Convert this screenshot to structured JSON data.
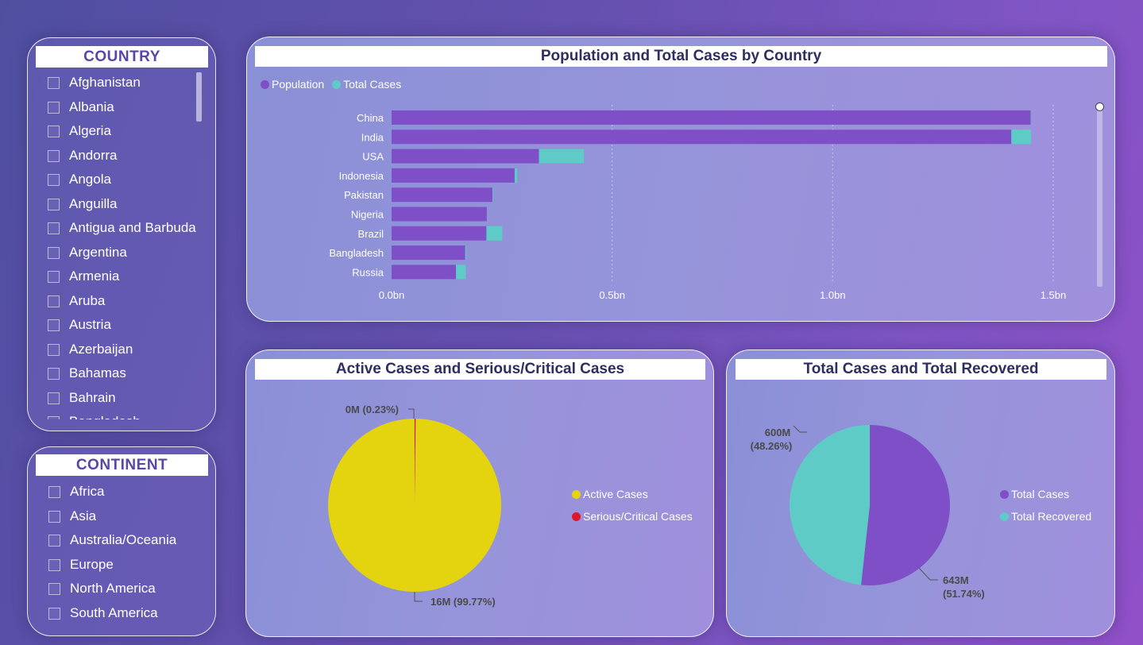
{
  "country_slicer": {
    "title": "COUNTRY",
    "items": [
      "Afghanistan",
      "Albania",
      "Algeria",
      "Andorra",
      "Angola",
      "Anguilla",
      "Antigua and Barbuda",
      "Argentina",
      "Armenia",
      "Aruba",
      "Austria",
      "Azerbaijan",
      "Bahamas",
      "Bahrain",
      "Bangladesh"
    ]
  },
  "continent_slicer": {
    "title": "CONTINENT",
    "items": [
      "Africa",
      "Asia",
      "Australia/Oceania",
      "Europe",
      "North America",
      "South America"
    ]
  },
  "bar_visual": {
    "title": "Population and Total Cases by Country",
    "legend": [
      {
        "label": "Population",
        "color": "#7e4fc7"
      },
      {
        "label": "Total Cases",
        "color": "#5fcbc6"
      }
    ]
  },
  "active_visual": {
    "title": "Active Cases and Serious/Critical Cases",
    "legend": [
      {
        "label": "Active Cases",
        "color": "#e4d30f"
      },
      {
        "label": "Serious/Critical Cases",
        "color": "#e0172b"
      }
    ],
    "labels": {
      "small": "0M (0.23%)",
      "large": "16M (99.77%)"
    }
  },
  "recovered_visual": {
    "title": "Total Cases and Total Recovered",
    "legend": [
      {
        "label": "Total Cases",
        "color": "#7e4fc7"
      },
      {
        "label": "Total Recovered",
        "color": "#5fcbc6"
      }
    ],
    "labels": {
      "recovered_value": "600M",
      "recovered_pct": "(48.26%)",
      "cases_value": "643M",
      "cases_pct": "(51.74%)"
    }
  },
  "chart_data": [
    {
      "type": "bar",
      "orientation": "horizontal",
      "stacked": true,
      "title": "Population and Total Cases by Country",
      "categories": [
        "China",
        "India",
        "USA",
        "Indonesia",
        "Pakistan",
        "Nigeria",
        "Brazil",
        "Bangladesh",
        "Russia"
      ],
      "series": [
        {
          "name": "Population",
          "values": [
            1.449,
            1.405,
            0.334,
            0.279,
            0.229,
            0.216,
            0.215,
            0.167,
            0.146
          ]
        },
        {
          "name": "Total Cases",
          "values": [
            0.0005,
            0.045,
            0.102,
            0.006,
            0.0015,
            0.0003,
            0.036,
            0.002,
            0.022
          ]
        }
      ],
      "xticks": [
        "0.0bn",
        "0.5bn",
        "1.0bn",
        "1.5bn"
      ],
      "xlim": [
        0,
        1.55
      ],
      "legend_position": "top-left",
      "grid": "vertical dotted"
    },
    {
      "type": "pie",
      "title": "Active Cases and Serious/Critical Cases",
      "slices": [
        {
          "name": "Active Cases",
          "value": 16,
          "percent": 99.77,
          "label": "16M (99.77%)"
        },
        {
          "name": "Serious/Critical Cases",
          "value": 0.037,
          "percent": 0.23,
          "label": "0M (0.23%)"
        }
      ],
      "legend_position": "right"
    },
    {
      "type": "pie",
      "title": "Total Cases and Total Recovered",
      "slices": [
        {
          "name": "Total Cases",
          "value": 643,
          "percent": 51.74,
          "label": "643M (51.74%)"
        },
        {
          "name": "Total Recovered",
          "value": 600,
          "percent": 48.26,
          "label": "600M (48.26%)"
        }
      ],
      "legend_position": "right"
    }
  ]
}
